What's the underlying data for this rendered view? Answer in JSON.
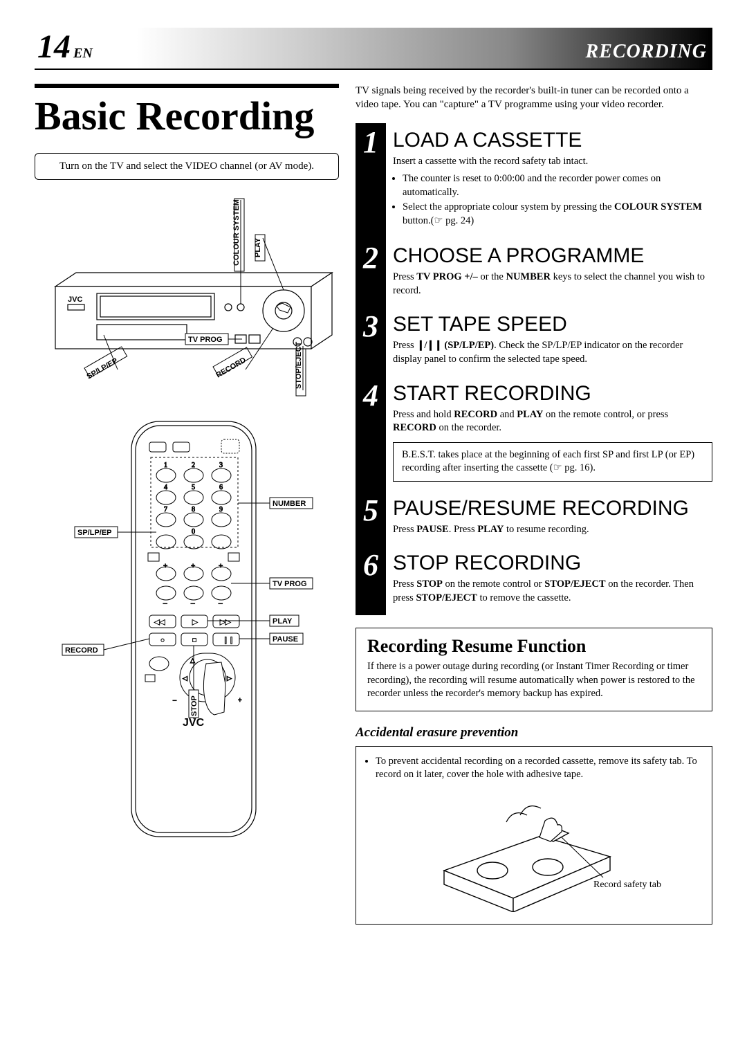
{
  "header": {
    "page_number": "14",
    "lang": "EN",
    "section": "RECORDING"
  },
  "main_title": "Basic Recording",
  "instruction_box": "Turn on the TV and select the VIDEO channel (or AV mode).",
  "vcr_diagram": {
    "brand": "JVC",
    "labels": {
      "colour_system": "COLOUR SYSTEM",
      "play": "PLAY",
      "tv_prog": "TV PROG",
      "stop_eject": "STOP/EJECT",
      "record": "RECORD",
      "sp_lp_ep": "SP/LP/EP"
    }
  },
  "remote_diagram": {
    "brand": "JVC",
    "labels": {
      "number": "NUMBER",
      "sp_lp_ep": "SP/LP/EP",
      "tv_prog": "TV PROG",
      "play": "PLAY",
      "pause": "PAUSE",
      "record": "RECORD",
      "stop": "STOP"
    },
    "keys": {
      "digits": [
        "1",
        "2",
        "3",
        "4",
        "5",
        "6",
        "7",
        "8",
        "9",
        "0"
      ]
    }
  },
  "intro": "TV signals being received by the recorder's built-in tuner can be recorded onto a video tape. You can \"capture\" a TV programme using your video recorder.",
  "steps": [
    {
      "num": "1",
      "title": "LOAD A CASSETTE",
      "body": "Insert a cassette with the record safety tab intact.",
      "bullets": [
        "The counter is reset to 0:00:00 and the recorder power comes on automatically.",
        "Select the appropriate colour system by pressing the <b>COLOUR SYSTEM</b> button.(☞ pg. 24)"
      ]
    },
    {
      "num": "2",
      "title": "CHOOSE A PROGRAMME",
      "body": "Press <b>TV PROG +/–</b> or the <b>NUMBER</b> keys to select the channel you wish to record."
    },
    {
      "num": "3",
      "title": "SET TAPE SPEED",
      "body": "Press <span class='speed-icon'>❙/❙❙</span> <b>(SP/LP/EP)</b>. Check the SP/LP/EP indicator on the recorder display panel to confirm the selected tape speed."
    },
    {
      "num": "4",
      "title": "START RECORDING",
      "body": "Press and hold <b>RECORD</b> and <b>PLAY</b> on the remote control, or press <b>RECORD</b> on the recorder.",
      "note": "B.E.S.T. takes place at the beginning of each first SP and first LP (or EP) recording after inserting the cassette (☞ pg. 16)."
    },
    {
      "num": "5",
      "title": "PAUSE/RESUME RECORDING",
      "body": "Press <b>PAUSE</b>. Press <b>PLAY</b> to resume recording."
    },
    {
      "num": "6",
      "title": "STOP RECORDING",
      "body": "Press <b>STOP</b> on the remote control or <b>STOP/EJECT</b> on the recorder. Then press <b>STOP/EJECT</b> to remove the cassette."
    }
  ],
  "resume_function": {
    "title": "Recording Resume Function",
    "body": "If there is a power outage during recording (or Instant Timer Recording or timer recording), the recording will resume automatically when power is restored to the recorder unless the recorder's memory backup has expired."
  },
  "erasure": {
    "heading": "Accidental erasure prevention",
    "bullet": "To prevent accidental recording on a recorded cassette, remove its safety tab. To record on it later, cover the hole with adhesive tape.",
    "callout": "Record safety tab"
  }
}
